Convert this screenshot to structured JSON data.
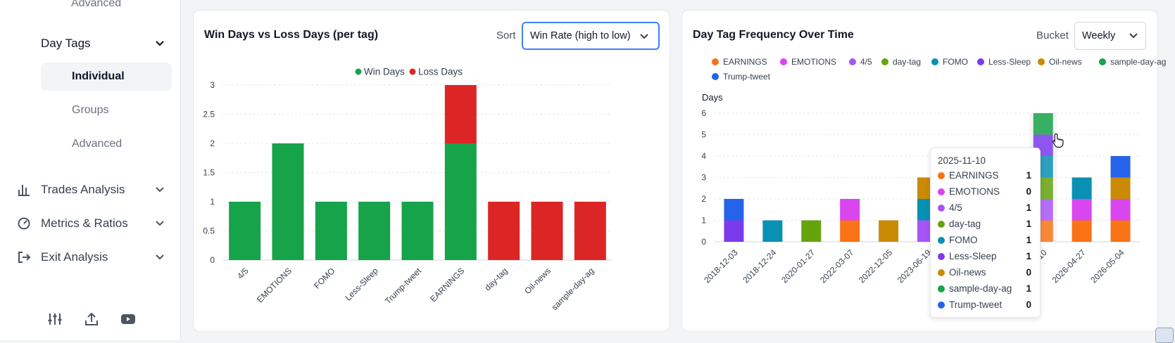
{
  "sidebar": {
    "top_item": "Advanced",
    "day_tags": "Day Tags",
    "sub_items": [
      "Individual",
      "Groups",
      "Advanced"
    ],
    "trades_analysis": "Trades Analysis",
    "metrics_ratios": "Metrics & Ratios",
    "exit_analysis": "Exit Analysis"
  },
  "left_panel": {
    "title": "Win Days vs Loss Days (per tag)",
    "sort_label": "Sort",
    "sort_value": "Win Rate (high to low)"
  },
  "right_panel": {
    "title": "Day Tag Frequency Over Time",
    "bucket_label": "Bucket",
    "bucket_value": "Weekly"
  },
  "colors": {
    "win": "#16a34a",
    "loss": "#dc2626",
    "EARNINGS": "#f97316",
    "EMOTIONS": "#d946ef",
    "4/5": "#a855f7",
    "day-tag": "#65a30d",
    "FOMO": "#0891b2",
    "Less-Sleep": "#7c3aed",
    "Oil-news": "#ca8a04",
    "sample-day-ag": "#16a34a",
    "Trump-tweet": "#2563eb"
  },
  "chart_data": [
    {
      "type": "bar",
      "stacked": true,
      "categories": [
        "4/5",
        "EMOTIONS",
        "FOMO",
        "Less-Sleep",
        "Trump-tweet",
        "EARNINGS",
        "day-tag",
        "Oil-news",
        "sample-day-ag"
      ],
      "series": [
        {
          "name": "Win Days",
          "values": [
            1,
            2,
            1,
            1,
            1,
            2,
            0,
            0,
            0
          ]
        },
        {
          "name": "Loss Days",
          "values": [
            0,
            0,
            0,
            0,
            0,
            1,
            1,
            1,
            1
          ]
        }
      ],
      "yticks": [
        "0",
        "0.5",
        "1",
        "1.5",
        "2",
        "2.5",
        "3"
      ],
      "ylim": [
        0,
        3
      ],
      "legend": "top-center",
      "grid": true
    },
    {
      "type": "bar",
      "stacked": true,
      "ylabel": "Days",
      "categories": [
        "2018-12-03",
        "2018-12-24",
        "2020-01-27",
        "2022-03-07",
        "2022-12-05",
        "2023-06-19",
        "2023-",
        "",
        "2025-11-10",
        "2026-04-27",
        "2026-05-04"
      ],
      "visible_tick_labels": [
        "2018-12-03",
        "2018-12-24",
        "2020-01-27",
        "2022-03-07",
        "2022-12-05",
        "2023-06-19",
        "2023-",
        "-10",
        "2026-04-27",
        "2026-05-04"
      ],
      "series": [
        {
          "name": "EARNINGS",
          "values": [
            0,
            0,
            0,
            1,
            0,
            0,
            0,
            0,
            1,
            1,
            1
          ]
        },
        {
          "name": "EMOTIONS",
          "values": [
            0,
            0,
            0,
            1,
            0,
            0,
            0,
            0,
            0,
            1,
            1
          ]
        },
        {
          "name": "4/5",
          "values": [
            0,
            0,
            0,
            0,
            0,
            1,
            0,
            0,
            1,
            0,
            0
          ]
        },
        {
          "name": "day-tag",
          "values": [
            0,
            0,
            1,
            0,
            0,
            0,
            0,
            0,
            1,
            0,
            0
          ]
        },
        {
          "name": "FOMO",
          "values": [
            0,
            1,
            0,
            0,
            0,
            1,
            0,
            0,
            1,
            1,
            0
          ]
        },
        {
          "name": "Less-Sleep",
          "values": [
            1,
            0,
            0,
            0,
            0,
            0,
            0,
            0,
            1,
            0,
            0
          ]
        },
        {
          "name": "Oil-news",
          "values": [
            0,
            0,
            0,
            0,
            1,
            1,
            0,
            0,
            0,
            0,
            1
          ]
        },
        {
          "name": "sample-day-ag",
          "values": [
            0,
            0,
            0,
            0,
            0,
            0,
            0,
            0,
            1,
            0,
            0
          ]
        },
        {
          "name": "Trump-tweet",
          "values": [
            1,
            0,
            0,
            0,
            0,
            0,
            0,
            0,
            0,
            0,
            1
          ]
        }
      ],
      "yticks": [
        "0",
        "1",
        "2",
        "3",
        "4",
        "5",
        "6"
      ],
      "ylim": [
        0,
        6
      ],
      "legend": "top-left",
      "grid": true
    }
  ],
  "tooltip": {
    "date": "2025-11-10",
    "rows": [
      {
        "label": "EARNINGS",
        "value": "1"
      },
      {
        "label": "EMOTIONS",
        "value": "0"
      },
      {
        "label": "4/5",
        "value": "1"
      },
      {
        "label": "day-tag",
        "value": "1"
      },
      {
        "label": "FOMO",
        "value": "1"
      },
      {
        "label": "Less-Sleep",
        "value": "1"
      },
      {
        "label": "Oil-news",
        "value": "0"
      },
      {
        "label": "sample-day-ag",
        "value": "1"
      },
      {
        "label": "Trump-tweet",
        "value": "0"
      }
    ]
  },
  "icons": [
    "bar-chart-icon",
    "gauge-icon",
    "exit-icon",
    "sliders-icon",
    "upload-icon",
    "youtube-icon",
    "chevron-down-icon"
  ]
}
